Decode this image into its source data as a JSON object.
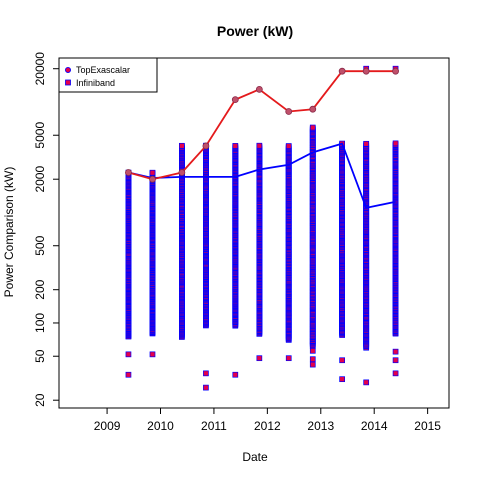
{
  "chart_data": {
    "type": "scatter",
    "title": "Power (kW)",
    "xlabel": "Date",
    "ylabel": "Power Comparison (kW)",
    "x_scale": "linear",
    "y_scale": "log",
    "xlim": [
      2008.1,
      2015.4
    ],
    "ylim": [
      17,
      25000
    ],
    "x_ticks": [
      "2009",
      "2010",
      "2011",
      "2012",
      "2013",
      "2014",
      "2015"
    ],
    "y_ticks": [
      "20",
      "50",
      "100",
      "200",
      "500",
      "2000",
      "5000",
      "20000"
    ],
    "grid": false,
    "legend_position": "top-left",
    "dates": [
      2009.4,
      2009.85,
      2010.4,
      2010.85,
      2011.4,
      2011.85,
      2012.4,
      2012.85,
      2013.4,
      2013.85,
      2014.4
    ],
    "series": [
      {
        "name": "TopExascalar",
        "color": "#e41a1c",
        "marker": "circle",
        "line": true,
        "values": [
          2300,
          2000,
          2300,
          4000,
          10500,
          13000,
          8200,
          8600,
          19000,
          19000,
          19000
        ]
      },
      {
        "name": "Infiniband",
        "color": "#0000ff",
        "marker_fill": "#e4004b",
        "marker": "square",
        "line": true,
        "line_values": [
          2300,
          2050,
          2100,
          2100,
          2100,
          2450,
          2700,
          3500,
          4200,
          1100,
          1250
        ],
        "columns": [
          {
            "x": 2009.4,
            "min": 75,
            "max": 2300,
            "outliers": [
              52,
              34
            ]
          },
          {
            "x": 2009.85,
            "min": 80,
            "max": 2300,
            "outliers": [
              52
            ]
          },
          {
            "x": 2010.4,
            "min": 75,
            "max": 4000,
            "outliers": []
          },
          {
            "x": 2010.85,
            "min": 95,
            "max": 4000,
            "outliers": [
              35,
              26
            ]
          },
          {
            "x": 2011.4,
            "min": 95,
            "max": 4000,
            "outliers": [
              34
            ]
          },
          {
            "x": 2011.85,
            "min": 80,
            "max": 4000,
            "outliers": [
              48
            ]
          },
          {
            "x": 2012.4,
            "min": 70,
            "max": 4000,
            "outliers": [
              48
            ]
          },
          {
            "x": 2012.85,
            "min": 62,
            "max": 5900,
            "outliers": [
              56,
              47,
              42
            ]
          },
          {
            "x": 2013.4,
            "min": 78,
            "max": 4200,
            "outliers": [
              46,
              31
            ]
          },
          {
            "x": 2013.85,
            "min": 60,
            "max": 4200,
            "outliers": [
              20000,
              29
            ]
          },
          {
            "x": 2014.4,
            "min": 80,
            "max": 4200,
            "outliers": [
              20000,
              55,
              46,
              35
            ]
          }
        ]
      }
    ]
  }
}
